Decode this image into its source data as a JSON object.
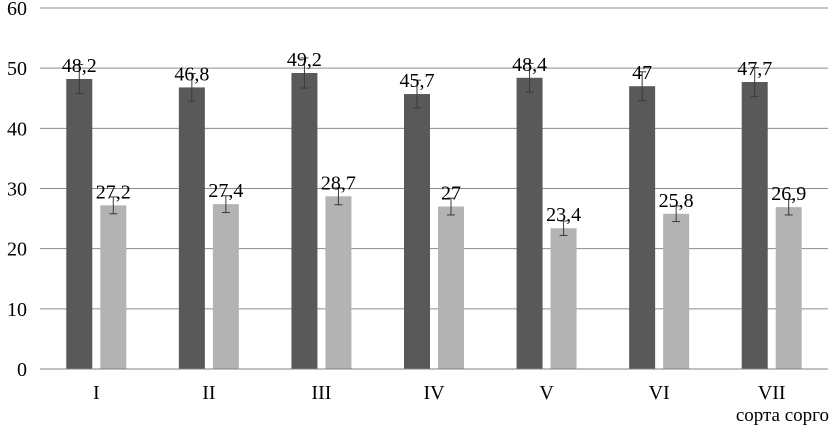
{
  "chart_data": {
    "type": "bar",
    "title": "",
    "xlabel": "сорта сорго",
    "ylabel": "",
    "ylim": [
      0,
      60
    ],
    "y_ticks": [
      "0",
      "10",
      "20",
      "30",
      "40",
      "50",
      "60"
    ],
    "grid": true,
    "categories": [
      "I",
      "II",
      "III",
      "IV",
      "V",
      "VI",
      "VII"
    ],
    "series": [
      {
        "color": "#595959",
        "values": [
          48.2,
          46.8,
          49.2,
          45.7,
          48.4,
          47,
          47.7
        ],
        "labels": [
          "48,2",
          "46,8",
          "49,2",
          "45,7",
          "48,4",
          "47",
          "47,7"
        ],
        "error": [
          2.4,
          2.3,
          2.5,
          2.3,
          2.4,
          2.4,
          2.4
        ]
      },
      {
        "color": "#b3b3b3",
        "values": [
          27.2,
          27.4,
          28.7,
          27,
          23.4,
          25.8,
          26.9
        ],
        "labels": [
          "27,2",
          "27,4",
          "28,7",
          "27",
          "23,4",
          "25,8",
          "26,9"
        ],
        "error": [
          1.4,
          1.4,
          1.4,
          1.4,
          1.2,
          1.3,
          1.3
        ]
      }
    ]
  }
}
